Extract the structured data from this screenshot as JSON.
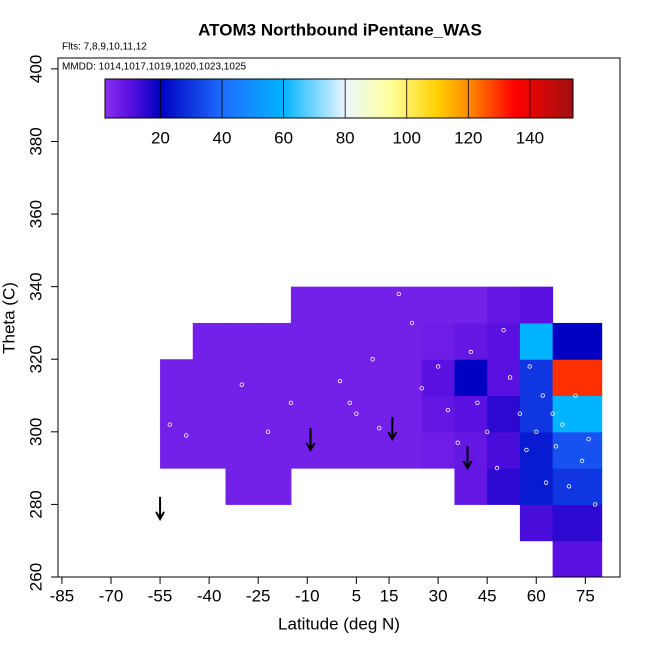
{
  "chart_data": {
    "type": "heatmap",
    "title": "ATOM3 Northbound iPentane_WAS",
    "annotations": [
      "Flts: 7,8,9,10,11,12",
      "MMDD: 1014,1017,1019,1020,1023,1025"
    ],
    "xlabel": "Latitude (deg N)",
    "ylabel": "Theta (C)",
    "xlim": [
      -86.2,
      85.6
    ],
    "ylim": [
      260,
      403
    ],
    "xticks": [
      -85,
      -70,
      -55,
      -40,
      -25,
      -10,
      5,
      15,
      30,
      45,
      60,
      75
    ],
    "yticks": [
      260,
      280,
      300,
      320,
      340,
      360,
      380,
      400
    ],
    "lat_edges": [
      -55,
      -45,
      -35,
      -25,
      -15,
      -5,
      5,
      15,
      25,
      35,
      45,
      55,
      65,
      80
    ],
    "theta_edges": [
      260,
      270,
      280,
      290,
      300,
      310,
      320,
      330,
      340
    ],
    "z": [
      [
        null,
        null,
        null,
        null,
        null,
        null,
        null,
        null,
        null,
        null,
        null,
        null,
        10
      ],
      [
        null,
        null,
        null,
        null,
        null,
        null,
        null,
        null,
        null,
        null,
        null,
        12,
        15
      ],
      [
        null,
        null,
        5,
        5,
        null,
        null,
        null,
        null,
        null,
        8,
        15,
        25,
        30
      ],
      [
        5,
        5,
        5,
        5,
        5,
        5,
        5,
        5,
        6,
        8,
        12,
        25,
        35
      ],
      [
        5,
        5,
        5,
        5,
        5,
        5,
        5,
        5,
        8,
        10,
        15,
        30,
        60
      ],
      [
        5,
        5,
        5,
        5,
        5,
        5,
        5,
        5,
        10,
        20,
        10,
        30,
        130
      ],
      [
        null,
        5,
        5,
        5,
        5,
        5,
        5,
        5,
        6,
        8,
        10,
        60,
        20
      ],
      [
        null,
        null,
        null,
        null,
        5,
        5,
        5,
        5,
        5,
        5,
        8,
        10,
        null
      ]
    ],
    "colorscale": [
      [
        0,
        "#8b2ff0"
      ],
      [
        10,
        "#5a10e0"
      ],
      [
        20,
        "#0000c0"
      ],
      [
        40,
        "#1e6cff"
      ],
      [
        60,
        "#00b4ff"
      ],
      [
        80,
        "#eaf6ff"
      ],
      [
        95,
        "#ffff99"
      ],
      [
        110,
        "#ffd000"
      ],
      [
        120,
        "#ff8c00"
      ],
      [
        135,
        "#ff0000"
      ],
      [
        154,
        "#a01010"
      ]
    ],
    "colorbar_lim": [
      2,
      154
    ],
    "colorbar_ticks": [
      20,
      40,
      60,
      80,
      100,
      120,
      140
    ],
    "points": {
      "x": [
        -52,
        -47,
        -30,
        -22,
        -15,
        0,
        3,
        5,
        10,
        12,
        18,
        22,
        25,
        30,
        33,
        36,
        40,
        42,
        45,
        48,
        50,
        52,
        55,
        57,
        58,
        60,
        62,
        63,
        65,
        66,
        68,
        70,
        72,
        74,
        76,
        78
      ],
      "y": [
        302,
        299,
        313,
        300,
        308,
        314,
        308,
        305,
        320,
        301,
        338,
        330,
        312,
        318,
        306,
        297,
        322,
        308,
        300,
        290,
        328,
        315,
        305,
        295,
        318,
        300,
        310,
        286,
        305,
        296,
        302,
        285,
        310,
        292,
        298,
        280
      ]
    },
    "arrows": {
      "x": [
        -55,
        -9,
        16,
        39
      ],
      "y": [
        276,
        295,
        298,
        290
      ]
    }
  }
}
